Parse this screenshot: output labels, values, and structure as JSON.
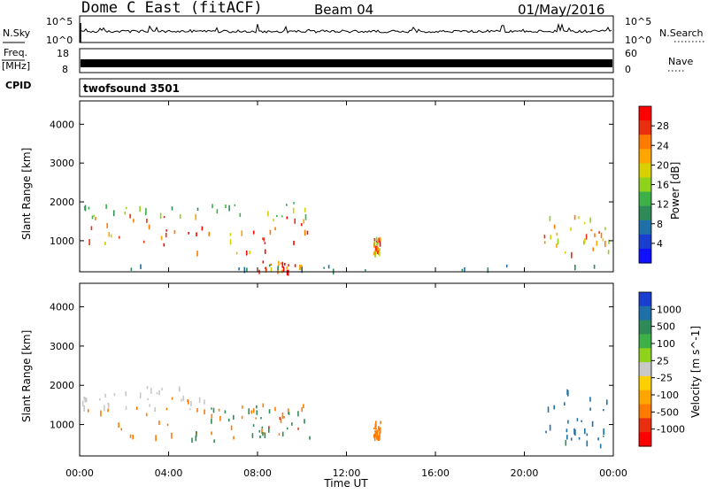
{
  "header": {
    "station": "Dome C East (fitACF)",
    "beam": "Beam 04",
    "date": "01/May/2016"
  },
  "top_panels": {
    "nsky_label": "N.Sky",
    "nsky_ticks": [
      "10^5",
      "10^0"
    ],
    "nsearch_label": "N.Search",
    "nsearch_ticks": [
      "10^5",
      "10^0"
    ],
    "freq_label_1": "Freq.",
    "freq_label_2": "[MHz]",
    "freq_ticks": [
      "18",
      "8"
    ],
    "nave_label": "Nave",
    "nave_ticks": [
      "60",
      "0"
    ],
    "cpid_label": "CPID",
    "cpid_value": "twofsound 3501"
  },
  "chart_data": [
    {
      "type": "heatmap",
      "panel": "power",
      "ylabel": "Slant Range [km]",
      "xlabel": "",
      "y_ticks": [
        "4000",
        "3000",
        "2000",
        "1000"
      ],
      "ylim": [
        200,
        4600
      ],
      "xlim": [
        0,
        24
      ],
      "colorbar_label": "Power [dB]",
      "colorbar_ticks": [
        "28",
        "24",
        "20",
        "16",
        "12",
        "8",
        "4"
      ],
      "colorbar_colors": [
        "#ff0000",
        "#e83010",
        "#ff7b00",
        "#ffa500",
        "#d8d000",
        "#8fd21c",
        "#3db048",
        "#2e8b57",
        "#1f6fa8",
        "#1a3fd0",
        "#1010ff"
      ],
      "scatter_regions": [
        {
          "t0": 0.0,
          "t1": 10.4,
          "r0": 700,
          "r1": 1700,
          "level": 26
        },
        {
          "t0": 0.0,
          "t1": 10.4,
          "r0": 1600,
          "r1": 2000,
          "level": 14
        },
        {
          "t0": 8.0,
          "t1": 10.0,
          "r0": 200,
          "r1": 500,
          "level": 26
        },
        {
          "t0": 13.2,
          "t1": 13.5,
          "r0": 700,
          "r1": 1100,
          "level": 24
        },
        {
          "t0": 20.8,
          "t1": 24.0,
          "r0": 700,
          "r1": 1700,
          "level": 22
        },
        {
          "t0": 0.0,
          "t1": 24.0,
          "r0": 200,
          "r1": 400,
          "level": 8
        }
      ]
    },
    {
      "type": "heatmap",
      "panel": "velocity",
      "ylabel": "Slant Range [km]",
      "xlabel": "Time UT",
      "x_ticks": [
        "00:00",
        "04:00",
        "08:00",
        "12:00",
        "16:00",
        "20:00",
        "00:00"
      ],
      "y_ticks": [
        "4000",
        "3000",
        "2000",
        "1000"
      ],
      "ylim": [
        200,
        4600
      ],
      "xlim": [
        0,
        24
      ],
      "colorbar_label": "Velocity [m s^-1]",
      "colorbar_ticks": [
        "1000",
        "500",
        "100",
        "25",
        "-25",
        "-100",
        "-500",
        "-1000"
      ],
      "colorbar_colors": [
        "#1a3fd0",
        "#1f6fa8",
        "#2e8b57",
        "#3db048",
        "#8fd21c",
        "#c8c8c8",
        "#ffd000",
        "#ffa500",
        "#ff7b00",
        "#e83010",
        "#ff0000"
      ],
      "scatter_regions": [
        {
          "t0": 0.0,
          "t1": 10.4,
          "r0": 700,
          "r1": 1700,
          "level": -120
        },
        {
          "t0": 0.0,
          "t1": 6.0,
          "r0": 1400,
          "r1": 2000,
          "level": 0
        },
        {
          "t0": 5.0,
          "t1": 10.4,
          "r0": 600,
          "r1": 1500,
          "level": 150
        },
        {
          "t0": 20.8,
          "t1": 24.0,
          "r0": 500,
          "r1": 1900,
          "level": 400
        },
        {
          "t0": 13.2,
          "t1": 13.5,
          "r0": 700,
          "r1": 1100,
          "level": -100
        }
      ]
    }
  ]
}
